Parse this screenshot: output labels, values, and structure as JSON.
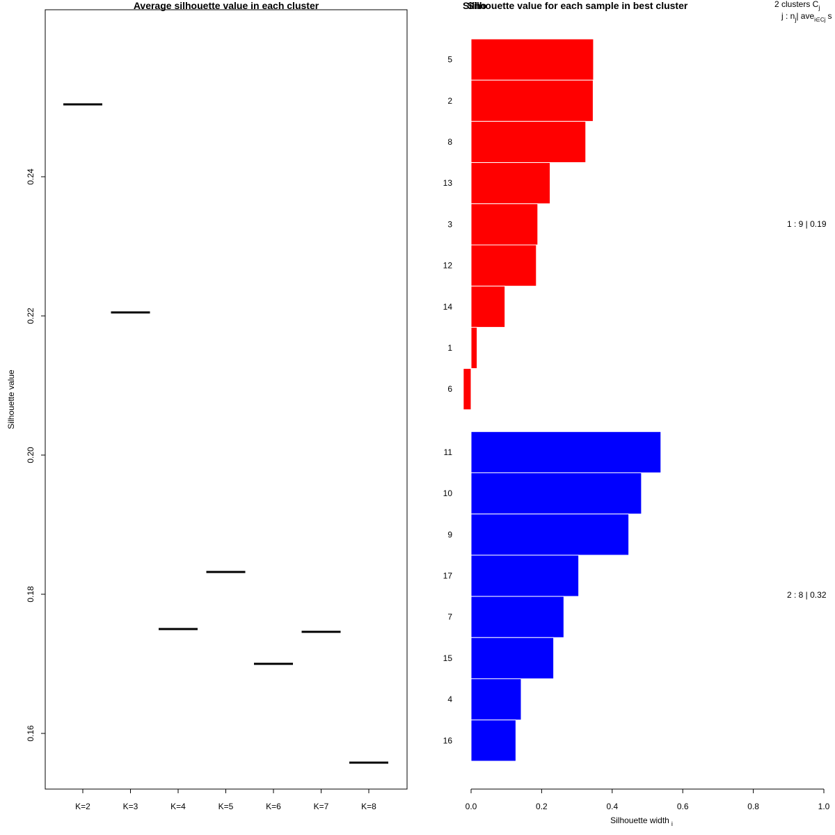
{
  "chart_data": [
    {
      "type": "scatter",
      "title": "Average silhouette value in each cluster",
      "xlabel": "",
      "ylabel": "Silhouette value",
      "categories": [
        "K=2",
        "K=3",
        "K=4",
        "K=5",
        "K=6",
        "K=7",
        "K=8"
      ],
      "values": [
        0.2504,
        0.2205,
        0.175,
        0.1832,
        0.17,
        0.1746,
        0.1558
      ],
      "yticks": [
        "0.16",
        "0.18",
        "0.20",
        "0.22",
        "0.24"
      ],
      "ylim": [
        0.152,
        0.264
      ],
      "marker": "horizontal segment",
      "color": "#000000"
    },
    {
      "type": "bar",
      "orientation": "horizontal",
      "title": "Silhouette value for each sample in best cluster",
      "overlapped_title_fragment": "Silho",
      "xlabel": "Silhouette width",
      "xlabel_subscript": "i",
      "xlim": [
        0,
        1
      ],
      "xticks": [
        "0.0",
        "0.2",
        "0.4",
        "0.6",
        "0.8",
        "1.0"
      ],
      "legend_header_line1": "2  clusters  C",
      "legend_header_line1_sub": "j",
      "legend_header_line2": "j :  n",
      "legend_header_line2_sub1": "j",
      "legend_header_line2_mid": "| ave",
      "legend_header_line2_sub2": "i∈Cj",
      "legend_header_line2_end": "s",
      "clusters": [
        {
          "label": "1 :  9  |  0.19",
          "color": "#ff0000",
          "samples": [
            "5",
            "2",
            "8",
            "13",
            "3",
            "12",
            "14",
            "1",
            "6"
          ],
          "values": [
            0.347,
            0.346,
            0.325,
            0.224,
            0.189,
            0.185,
            0.096,
            0.017,
            -0.022
          ]
        },
        {
          "label": "2 :  8  |  0.32",
          "color": "#0000ff",
          "samples": [
            "11",
            "10",
            "9",
            "17",
            "7",
            "15",
            "4",
            "16"
          ],
          "values": [
            0.538,
            0.483,
            0.447,
            0.305,
            0.263,
            0.234,
            0.142,
            0.127
          ]
        }
      ]
    }
  ]
}
